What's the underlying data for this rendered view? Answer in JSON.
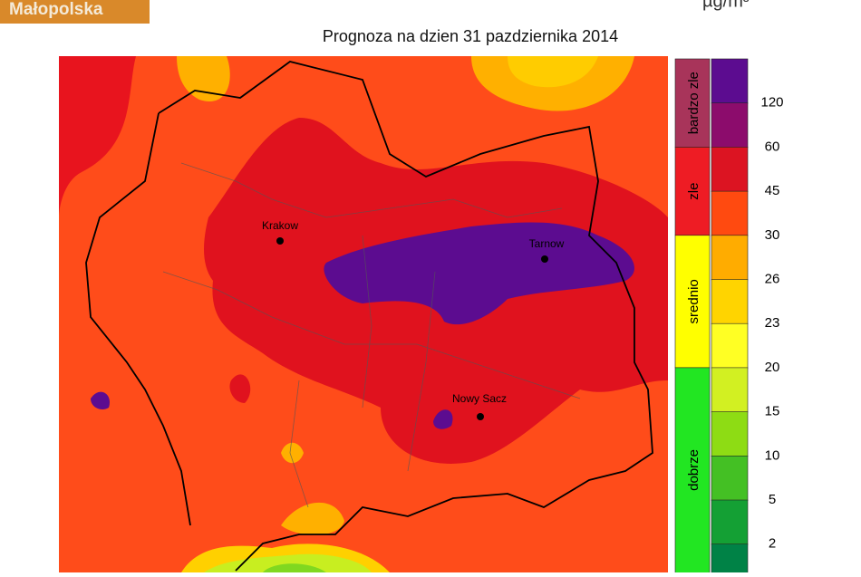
{
  "header": {
    "brand": "Małopolska",
    "unit": "µg/m³"
  },
  "title": "Prognoza na dzien  31 pazdziernika 2014",
  "map": {
    "cities": [
      {
        "label": "Krakow"
      },
      {
        "label": "Tarnow"
      },
      {
        "label": "Nowy Sacz"
      }
    ]
  },
  "legend": {
    "categories": [
      {
        "label": "bardzo zle",
        "color": "#a8345a"
      },
      {
        "label": "zle",
        "color": "#ee1c24"
      },
      {
        "label": "srednio",
        "color": "#ffff00"
      },
      {
        "label": "dobrze",
        "color": "#22e622"
      }
    ],
    "bins": [
      "#5c0c90",
      "#8c0c6c",
      "#dc1422",
      "#ff4a10",
      "#ffac00",
      "#ffd400",
      "#ffff24",
      "#d2f022",
      "#8edc14",
      "#44c024",
      "#14a034",
      "#008246"
    ],
    "ticks": [
      "120",
      "60",
      "45",
      "30",
      "26",
      "23",
      "20",
      "15",
      "10",
      "5",
      "2"
    ]
  }
}
